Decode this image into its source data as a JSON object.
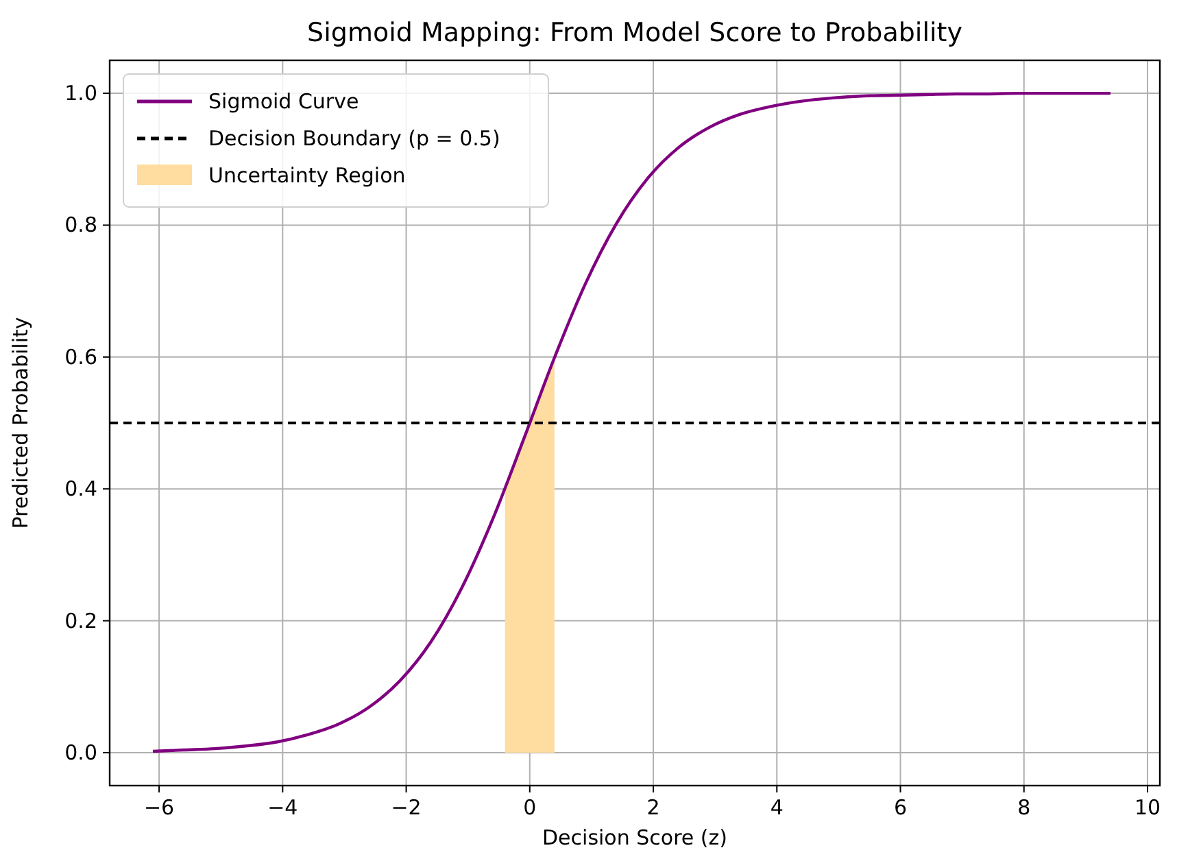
{
  "chart_data": {
    "type": "line",
    "title": "Sigmoid Mapping: From Model Score to Probability",
    "xlabel": "Decision Score (z)",
    "ylabel": "Predicted Probability",
    "xlim": [
      -6.8,
      10.2
    ],
    "xticks": [
      {
        "value": -6,
        "label": "−6"
      },
      {
        "value": -4,
        "label": "−4"
      },
      {
        "value": -2,
        "label": "−2"
      },
      0,
      2,
      4,
      6,
      8,
      10
    ],
    "ylim": [
      -0.05,
      1.05
    ],
    "yticks": [
      {
        "value": 0,
        "label": "0.0"
      },
      0.2,
      0.4,
      0.6,
      0.8,
      {
        "value": 1,
        "label": "1.0"
      }
    ],
    "grid": true,
    "legend": "top left",
    "line_style": "solid",
    "marker": "none",
    "series": [
      {
        "name": "Sigmoid Curve",
        "color": "#800080",
        "x": [
          -6.1,
          -5.6,
          -5.1,
          -4.6,
          -4.1,
          -3.6,
          -3.1,
          -2.6,
          -2.1,
          -1.6,
          -1.1,
          -0.6,
          -0.1,
          0.4,
          0.9,
          1.4,
          1.9,
          2.4,
          2.9,
          3.4,
          3.9,
          4.4,
          4.9,
          5.4,
          5.9,
          6.4,
          6.9,
          7.4,
          7.9,
          8.4,
          8.9,
          9.4
        ],
        "values": [
          0.002,
          0.004,
          0.006,
          0.01,
          0.016,
          0.027,
          0.043,
          0.069,
          0.109,
          0.168,
          0.25,
          0.354,
          0.475,
          0.599,
          0.711,
          0.802,
          0.87,
          0.917,
          0.948,
          0.968,
          0.98,
          0.988,
          0.993,
          0.996,
          0.997,
          0.998,
          0.999,
          0.999,
          1.0,
          1.0,
          1.0,
          1.0
        ]
      },
      {
        "name": "Uncertainty Region",
        "type": "area",
        "color": "#ffdca0",
        "x": [
          -0.4,
          -0.2,
          0,
          0.2,
          0.4
        ],
        "values": [
          0.401,
          0.45,
          0.5,
          0.55,
          0.599
        ]
      }
    ],
    "ref_lines": [
      {
        "axis": "y",
        "value": 0.5,
        "label": "Decision Boundary (p = 0.5)",
        "color": "#000000",
        "line_style": "dashed"
      }
    ]
  }
}
